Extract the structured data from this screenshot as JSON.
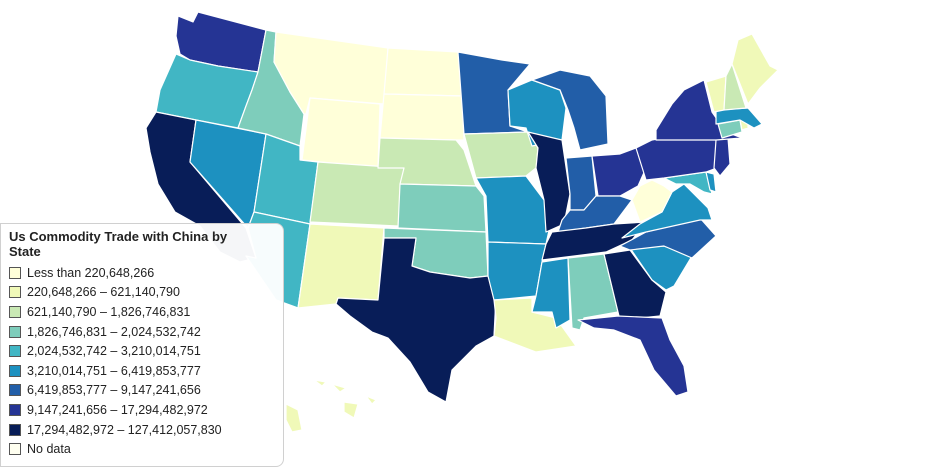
{
  "legend": {
    "title": "Us Commodity Trade with China by State",
    "items": [
      {
        "label": "Less than 220,648,266",
        "color": "#ffffd9"
      },
      {
        "label": "220,648,266 – 621,140,790",
        "color": "#f0f9b8"
      },
      {
        "label": "621,140,790 – 1,826,746,831",
        "color": "#c9e9b4"
      },
      {
        "label": "1,826,746,831 – 2,024,532,742",
        "color": "#7ecdbb"
      },
      {
        "label": "2,024,532,742 – 3,210,014,751",
        "color": "#41b6c4"
      },
      {
        "label": "3,210,014,751 – 6,419,853,777",
        "color": "#1d91c0"
      },
      {
        "label": "6,419,853,777 – 9,147,241,656",
        "color": "#225ea8"
      },
      {
        "label": "9,147,241,656 – 17,294,482,972",
        "color": "#253494"
      },
      {
        "label": "17,294,482,972 – 127,412,057,830",
        "color": "#081d58"
      },
      {
        "label": "No data",
        "color": "#fffff0"
      }
    ]
  },
  "states": [
    {
      "name": "WA",
      "cls": 7
    },
    {
      "name": "OR",
      "cls": 4
    },
    {
      "name": "CA",
      "cls": 8
    },
    {
      "name": "NV",
      "cls": 5
    },
    {
      "name": "ID",
      "cls": 3
    },
    {
      "name": "MT",
      "cls": 0
    },
    {
      "name": "WY",
      "cls": 0
    },
    {
      "name": "UT",
      "cls": 4
    },
    {
      "name": "AZ",
      "cls": 4
    },
    {
      "name": "CO",
      "cls": 2
    },
    {
      "name": "NM",
      "cls": 1
    },
    {
      "name": "ND",
      "cls": 0
    },
    {
      "name": "SD",
      "cls": 0
    },
    {
      "name": "NE",
      "cls": 2
    },
    {
      "name": "KS",
      "cls": 3
    },
    {
      "name": "OK",
      "cls": 3
    },
    {
      "name": "TX",
      "cls": 8
    },
    {
      "name": "MN",
      "cls": 6
    },
    {
      "name": "IA",
      "cls": 2
    },
    {
      "name": "MO",
      "cls": 5
    },
    {
      "name": "AR",
      "cls": 5
    },
    {
      "name": "LA",
      "cls": 1
    },
    {
      "name": "WI",
      "cls": 5
    },
    {
      "name": "IL",
      "cls": 8
    },
    {
      "name": "MI",
      "cls": 6
    },
    {
      "name": "IN",
      "cls": 6
    },
    {
      "name": "OH",
      "cls": 7
    },
    {
      "name": "KY",
      "cls": 6
    },
    {
      "name": "TN",
      "cls": 8
    },
    {
      "name": "MS",
      "cls": 5
    },
    {
      "name": "AL",
      "cls": 3
    },
    {
      "name": "GA",
      "cls": 8
    },
    {
      "name": "FL",
      "cls": 7
    },
    {
      "name": "SC",
      "cls": 5
    },
    {
      "name": "NC",
      "cls": 6
    },
    {
      "name": "VA",
      "cls": 5
    },
    {
      "name": "WV",
      "cls": 0
    },
    {
      "name": "MD",
      "cls": 4
    },
    {
      "name": "DE",
      "cls": 5
    },
    {
      "name": "PA",
      "cls": 7
    },
    {
      "name": "NJ",
      "cls": 7
    },
    {
      "name": "NY",
      "cls": 7
    },
    {
      "name": "CT",
      "cls": 3
    },
    {
      "name": "RI",
      "cls": 1
    },
    {
      "name": "MA",
      "cls": 5
    },
    {
      "name": "VT",
      "cls": 1
    },
    {
      "name": "NH",
      "cls": 2
    },
    {
      "name": "ME",
      "cls": 1
    },
    {
      "name": "HI",
      "cls": 1
    },
    {
      "name": "AK",
      "cls": 1
    }
  ]
}
